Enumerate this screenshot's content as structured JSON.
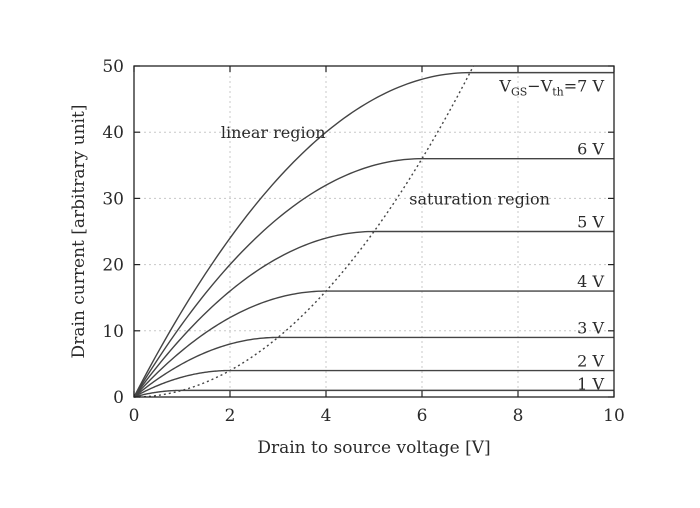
{
  "chart_data": {
    "type": "line",
    "xlabel": "Drain to source voltage [V]",
    "ylabel": "Drain current [arbitrary unit]",
    "xlim": [
      0,
      10
    ],
    "ylim": [
      0,
      50
    ],
    "xticks": [
      0,
      2,
      4,
      6,
      8,
      10
    ],
    "yticks": [
      0,
      10,
      20,
      30,
      40,
      50
    ],
    "grid": true,
    "series": [
      {
        "name": "1 V",
        "vov": 1
      },
      {
        "name": "2 V",
        "vov": 2
      },
      {
        "name": "3 V",
        "vov": 3
      },
      {
        "name": "4 V",
        "vov": 4
      },
      {
        "name": "5 V",
        "vov": 5
      },
      {
        "name": "6 V",
        "vov": 6
      },
      {
        "name": "V_GS−V_th=7 V",
        "vov": 7
      }
    ],
    "label_7": {
      "v": "V",
      "gs": "GS",
      "dash": "−V",
      "th": "th",
      "eq": "=7 V"
    },
    "saturation_boundary": {
      "style": "dotted",
      "equation": "I = V^2"
    },
    "annotations": [
      {
        "text": "linear region",
        "x": 2.9,
        "y": 40
      },
      {
        "text": "saturation region",
        "x": 7.2,
        "y": 30
      }
    ]
  }
}
